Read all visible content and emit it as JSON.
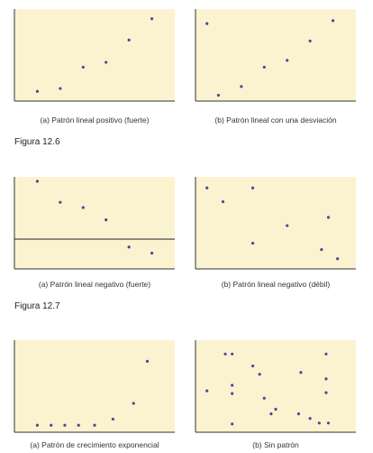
{
  "figure_labels": [
    "Figura 12.6",
    "Figura 12.7"
  ],
  "chart_data": [
    {
      "type": "scatter",
      "caption": "(a) Patrón lineal positivo (fuerte)",
      "points": [
        [
          1,
          1
        ],
        [
          2,
          1.3
        ],
        [
          3,
          3.5
        ],
        [
          4,
          4
        ],
        [
          5,
          6.3
        ],
        [
          6,
          8.5
        ]
      ],
      "xlim": [
        0,
        7
      ],
      "ylim": [
        0,
        9.5
      ],
      "hline": null
    },
    {
      "type": "scatter",
      "caption": "(b) Patrón lineal con una desviación",
      "points": [
        [
          0.5,
          8
        ],
        [
          1,
          0.6
        ],
        [
          2,
          1.5
        ],
        [
          3,
          3.5
        ],
        [
          4,
          4.2
        ],
        [
          5,
          6.2
        ],
        [
          6,
          8.3
        ]
      ],
      "xlim": [
        0,
        7
      ],
      "ylim": [
        0,
        9.5
      ],
      "hline": null
    },
    {
      "type": "scatter",
      "caption": "(a) Patrón lineal negativo (fuerte)",
      "points": [
        [
          1,
          9
        ],
        [
          2,
          6.6
        ],
        [
          3,
          6
        ],
        [
          4,
          4.6
        ],
        [
          5,
          1.5
        ],
        [
          6,
          0.8
        ]
      ],
      "xlim": [
        0,
        7
      ],
      "ylim": [
        -1,
        9.5
      ],
      "hline": 2.4
    },
    {
      "type": "scatter",
      "caption": "(b) Patrón lineal negativo (débil)",
      "points": [
        [
          0.5,
          8.3
        ],
        [
          1.2,
          6.8
        ],
        [
          2.5,
          8.3
        ],
        [
          2.5,
          2.3
        ],
        [
          4,
          4.2
        ],
        [
          5.5,
          1.6
        ],
        [
          5.8,
          5.1
        ],
        [
          6.2,
          0.6
        ]
      ],
      "xlim": [
        0,
        7
      ],
      "ylim": [
        -0.5,
        9.5
      ],
      "hline": null
    },
    {
      "type": "scatter",
      "caption": "(a) Patrón de crecimiento exponencial",
      "points": [
        [
          1,
          0.3
        ],
        [
          1.6,
          0.3
        ],
        [
          2.2,
          0.3
        ],
        [
          2.8,
          0.3
        ],
        [
          3.5,
          0.3
        ],
        [
          4.3,
          1
        ],
        [
          5.2,
          2.8
        ],
        [
          5.8,
          7.6
        ]
      ],
      "xlim": [
        0,
        7
      ],
      "ylim": [
        -0.5,
        10
      ],
      "hline": null
    },
    {
      "type": "scatter",
      "caption": "(b) Sin patrón",
      "points": [
        [
          0.5,
          4
        ],
        [
          1.3,
          8
        ],
        [
          1.6,
          8
        ],
        [
          1.6,
          4.6
        ],
        [
          1.6,
          3.7
        ],
        [
          1.6,
          0.4
        ],
        [
          2.5,
          6.7
        ],
        [
          2.8,
          5.8
        ],
        [
          3,
          3.2
        ],
        [
          3.3,
          1.5
        ],
        [
          3.5,
          2
        ],
        [
          4.5,
          1.5
        ],
        [
          4.6,
          6
        ],
        [
          5,
          1
        ],
        [
          5.4,
          0.5
        ],
        [
          5.7,
          8
        ],
        [
          5.7,
          5.3
        ],
        [
          5.7,
          3.8
        ],
        [
          5.8,
          0.5
        ]
      ],
      "xlim": [
        0,
        7
      ],
      "ylim": [
        -0.5,
        9.5
      ],
      "hline": null
    }
  ]
}
